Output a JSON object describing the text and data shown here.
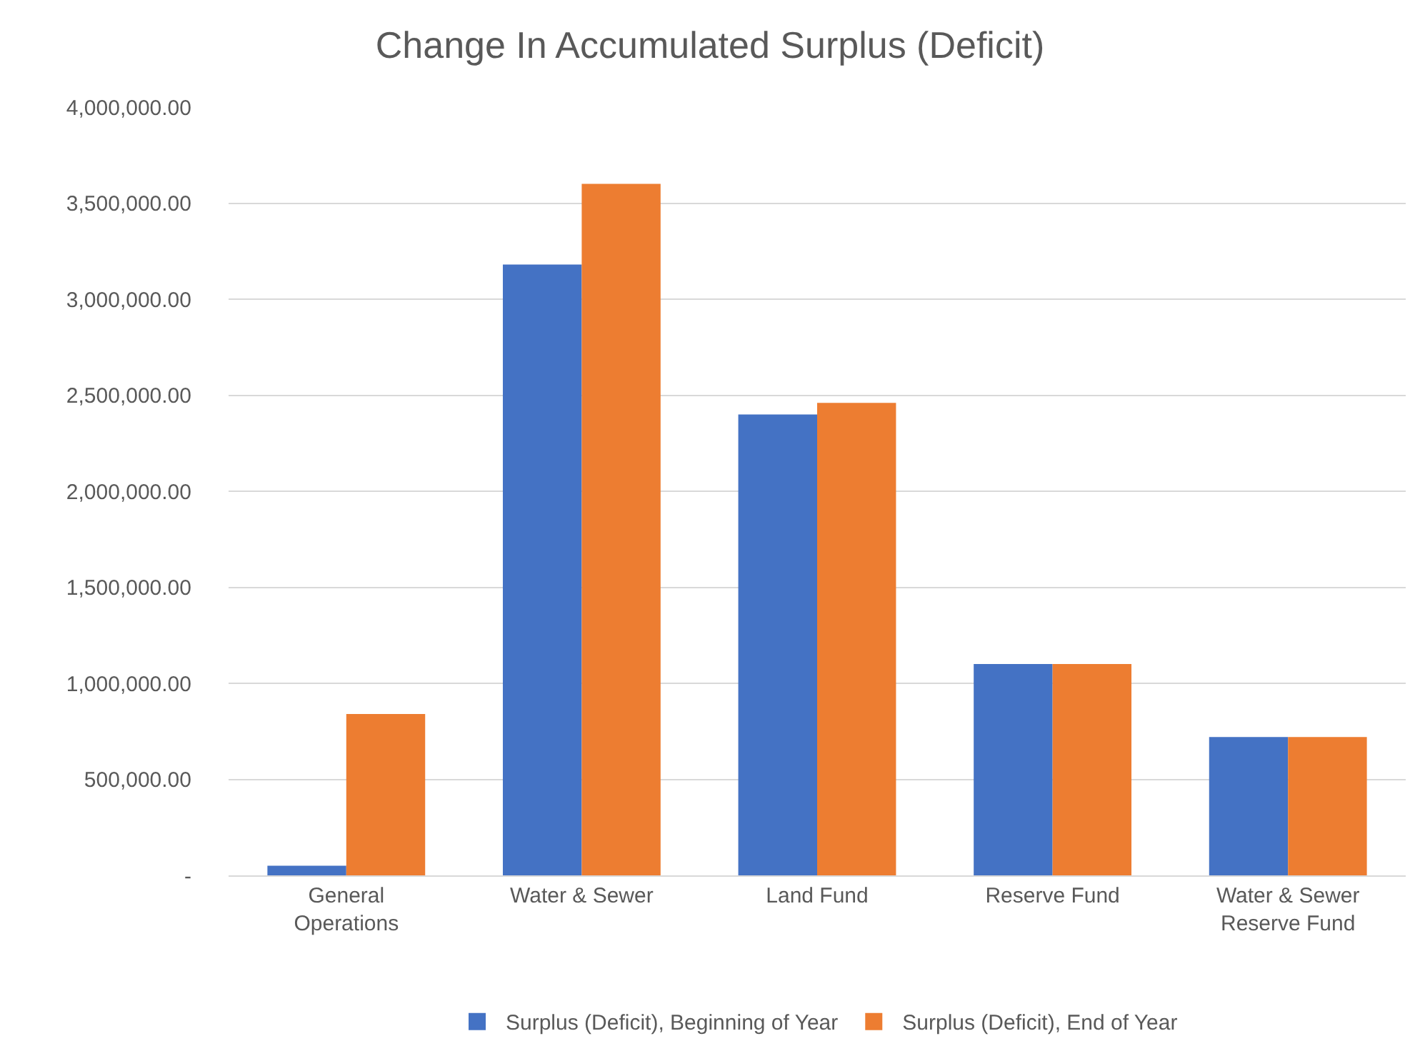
{
  "chart_data": {
    "type": "bar",
    "title": "Change In Accumulated Surplus (Deficit)",
    "categories": [
      "General Operations",
      "Water & Sewer",
      "Land Fund",
      "Reserve Fund",
      "Water & Sewer Reserve Fund"
    ],
    "series": [
      {
        "name": "Surplus (Deficit), Beginning of Year",
        "color": "#4472c4",
        "values": [
          50000,
          3180000,
          2400000,
          1100000,
          720000
        ]
      },
      {
        "name": "Surplus (Deficit), End of Year",
        "color": "#ed7d31",
        "values": [
          840000,
          3600000,
          2460000,
          1100000,
          720000
        ]
      }
    ],
    "ylim": [
      0,
      4000000
    ],
    "yticks": [
      {
        "value": 0,
        "label": "-"
      },
      {
        "value": 500000,
        "label": "500,000.00"
      },
      {
        "value": 1000000,
        "label": "1,000,000.00"
      },
      {
        "value": 1500000,
        "label": "1,500,000.00"
      },
      {
        "value": 2000000,
        "label": "2,000,000.00"
      },
      {
        "value": 2500000,
        "label": "2,500,000.00"
      },
      {
        "value": 3000000,
        "label": "3,000,000.00"
      },
      {
        "value": 3500000,
        "label": "3,500,000.00"
      },
      {
        "value": 4000000,
        "label": "4,000,000.00"
      }
    ],
    "grid": "y",
    "legend": "bottom"
  }
}
